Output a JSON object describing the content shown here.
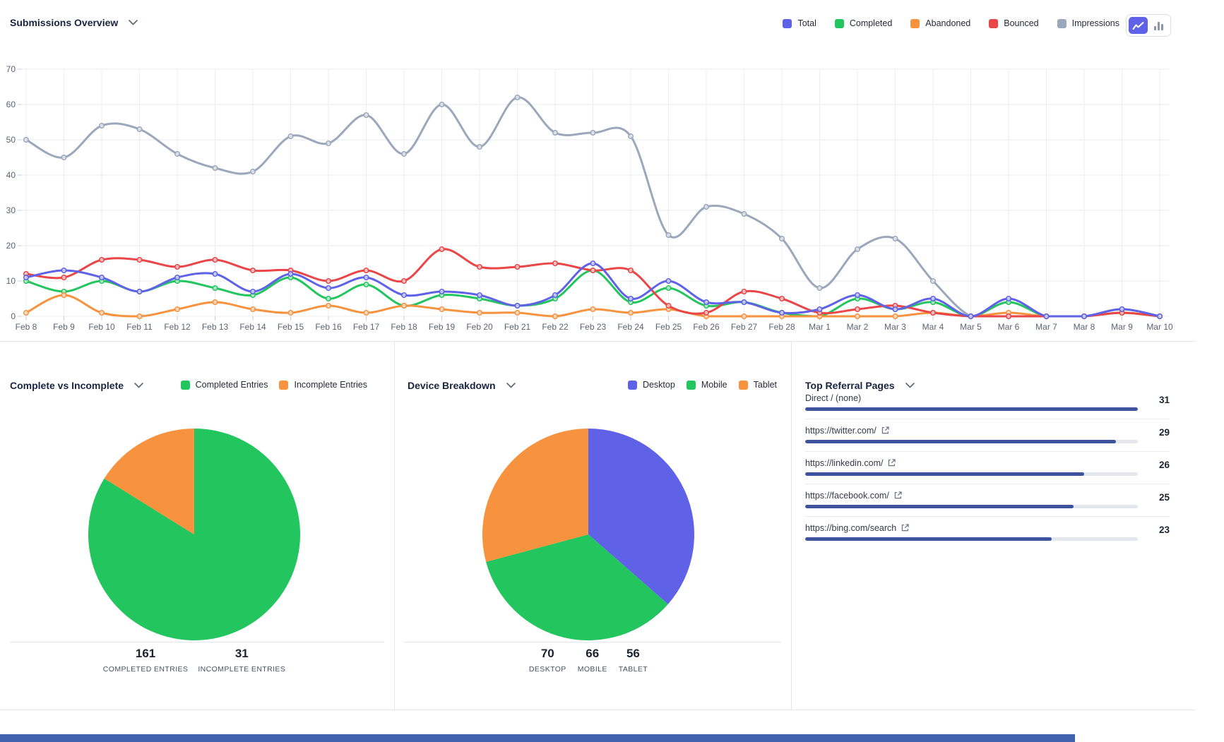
{
  "colors": {
    "indigo": "#5f62e6",
    "green": "#22c55e",
    "orange": "#f7923e",
    "red": "#ea4547",
    "gray_blue": "#9ba7ba",
    "referral_bar": "#3d539e",
    "referral_track": "#e4e7ec",
    "bottom_strip": "#4160ad"
  },
  "chart_toggle": {
    "options": [
      "line",
      "bar"
    ],
    "active": "line"
  },
  "chart_data": [
    {
      "id": "submissions-overview",
      "type": "line",
      "title": "Submissions Overview",
      "legend_position": "top-right",
      "grid": true,
      "ylim": [
        0,
        70
      ],
      "yticks": [
        0,
        10,
        20,
        30,
        40,
        50,
        60,
        70
      ],
      "x": [
        "Feb 8",
        "Feb 9",
        "Feb 10",
        "Feb 11",
        "Feb 12",
        "Feb 13",
        "Feb 14",
        "Feb 15",
        "Feb 16",
        "Feb 17",
        "Feb 18",
        "Feb 19",
        "Feb 20",
        "Feb 21",
        "Feb 22",
        "Feb 23",
        "Feb 24",
        "Feb 25",
        "Feb 26",
        "Feb 27",
        "Feb 28",
        "Mar 1",
        "Mar 2",
        "Mar 3",
        "Mar 4",
        "Mar 5",
        "Mar 6",
        "Mar 7",
        "Mar 8",
        "Mar 9",
        "Mar 10"
      ],
      "series": [
        {
          "name": "Total",
          "color": "#5f62e6",
          "values": [
            11,
            13,
            11,
            7,
            11,
            12,
            7,
            12,
            8,
            11,
            6,
            7,
            6,
            3,
            6,
            15,
            5,
            10,
            4,
            4,
            1,
            2,
            6,
            2,
            5,
            0,
            5,
            0,
            0,
            2,
            0
          ]
        },
        {
          "name": "Completed",
          "color": "#22c55e",
          "values": [
            10,
            7,
            10,
            7,
            10,
            8,
            6,
            11,
            5,
            9,
            3,
            6,
            5,
            3,
            5,
            13,
            4,
            8,
            3,
            4,
            1,
            0,
            5,
            2,
            4,
            0,
            4,
            0,
            0,
            1,
            0
          ]
        },
        {
          "name": "Abandoned",
          "color": "#f7923e",
          "values": [
            1,
            6,
            1,
            0,
            2,
            4,
            2,
            1,
            3,
            1,
            3,
            2,
            1,
            1,
            0,
            2,
            1,
            2,
            0,
            0,
            0,
            0,
            0,
            0,
            1,
            0,
            1,
            0,
            0,
            1,
            0
          ]
        },
        {
          "name": "Bounced",
          "color": "#ea4547",
          "values": [
            12,
            11,
            16,
            16,
            14,
            16,
            13,
            13,
            10,
            13,
            10,
            19,
            14,
            14,
            15,
            13,
            13,
            3,
            1,
            7,
            5,
            1,
            2,
            3,
            1,
            0,
            0,
            0,
            0,
            1,
            0
          ]
        },
        {
          "name": "Impressions",
          "color": "#9ba7ba",
          "values": [
            50,
            45,
            54,
            53,
            46,
            42,
            41,
            51,
            49,
            57,
            46,
            60,
            48,
            62,
            52,
            52,
            51,
            23,
            31,
            29,
            22,
            8,
            19,
            22,
            10,
            0,
            0,
            0,
            0,
            2,
            0
          ]
        }
      ]
    },
    {
      "id": "complete-vs-incomplete",
      "type": "pie",
      "title": "Complete vs Incomplete",
      "slices": [
        {
          "label": "Completed Entries",
          "value": 161,
          "color": "#22c55e"
        },
        {
          "label": "Incomplete Entries",
          "value": 31,
          "color": "#f7923e"
        }
      ],
      "stats": [
        {
          "value": "161",
          "label": "COMPLETED ENTRIES"
        },
        {
          "value": "31",
          "label": "INCOMPLETE ENTRIES"
        }
      ]
    },
    {
      "id": "device-breakdown",
      "type": "pie",
      "title": "Device Breakdown",
      "slices": [
        {
          "label": "Desktop",
          "value": 70,
          "color": "#5f62e6"
        },
        {
          "label": "Mobile",
          "value": 66,
          "color": "#22c55e"
        },
        {
          "label": "Tablet",
          "value": 56,
          "color": "#f7923e"
        }
      ],
      "stats": [
        {
          "value": "70",
          "label": "DESKTOP"
        },
        {
          "value": "66",
          "label": "MOBILE"
        },
        {
          "value": "56",
          "label": "TABLET"
        }
      ]
    },
    {
      "id": "top-referral-pages",
      "type": "table",
      "title": "Top Referral Pages",
      "max_value": 31,
      "bar_color": "#3d539e",
      "track_color": "#e4e7ec",
      "items": [
        {
          "label": "Direct / (none)",
          "value": 31,
          "external": false
        },
        {
          "label": "https://twitter.com/",
          "value": 29,
          "external": true
        },
        {
          "label": "https://linkedin.com/",
          "value": 26,
          "external": true
        },
        {
          "label": "https://facebook.com/",
          "value": 25,
          "external": true
        },
        {
          "label": "https://bing.com/search",
          "value": 23,
          "external": true
        }
      ]
    }
  ]
}
